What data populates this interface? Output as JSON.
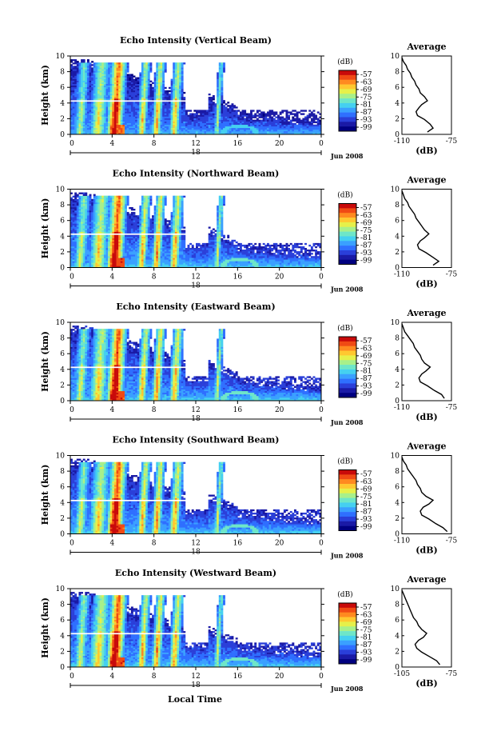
{
  "figure": {
    "common_xlabel": "Local Time"
  },
  "colormap": [
    "#000080",
    "#1a1aa6",
    "#2a3fd9",
    "#2f6fff",
    "#3aa0ff",
    "#45d0f0",
    "#6ee6c8",
    "#a8f08a",
    "#e6f04a",
    "#ffc830",
    "#ff8a20",
    "#f04a14",
    "#c80a0a"
  ],
  "chart_data": [
    {
      "type": "heatmap",
      "title": "Echo Intensity (Vertical Beam)",
      "ylabel": "Height (km)",
      "ylim": [
        0,
        10
      ],
      "yticks": [
        "0",
        "2",
        "4",
        "6",
        "8",
        "10"
      ],
      "xlim": [
        0,
        24
      ],
      "xticks": [
        "0",
        "4",
        "8",
        "12",
        "16",
        "20",
        "0"
      ],
      "date_label": "18",
      "month_label": "Jun 2008",
      "colorbar": {
        "label": "(dB)",
        "ticks": [
          "-57",
          "-63",
          "-69",
          "-75",
          "-81",
          "-87",
          "-93",
          "-99"
        ]
      },
      "average": {
        "title": "Average",
        "xlabel": "(dB)",
        "xticks": [
          "-110",
          "-75"
        ],
        "xlim": [
          -110,
          -75
        ],
        "ylim": [
          0,
          10
        ],
        "yticks": [
          "0",
          "2",
          "4",
          "6",
          "8",
          "10"
        ],
        "profile": [
          [
            -92,
            0.3
          ],
          [
            -88,
            0.8
          ],
          [
            -90,
            1.3
          ],
          [
            -94,
            1.9
          ],
          [
            -99,
            2.4
          ],
          [
            -100,
            2.9
          ],
          [
            -98,
            3.4
          ],
          [
            -96,
            3.8
          ],
          [
            -92,
            4.3
          ],
          [
            -94,
            4.8
          ],
          [
            -97,
            5.3
          ],
          [
            -98,
            5.8
          ],
          [
            -100,
            6.3
          ],
          [
            -101,
            6.8
          ],
          [
            -103,
            7.3
          ],
          [
            -104,
            7.8
          ],
          [
            -106,
            8.3
          ],
          [
            -107,
            8.8
          ],
          [
            -109,
            9.3
          ],
          [
            -110,
            9.8
          ]
        ]
      }
    },
    {
      "type": "heatmap",
      "title": "Echo Intensity (Northward Beam)",
      "ylabel": "Height (km)",
      "ylim": [
        0,
        10
      ],
      "yticks": [
        "0",
        "2",
        "4",
        "6",
        "8",
        "10"
      ],
      "xlim": [
        0,
        24
      ],
      "xticks": [
        "0",
        "4",
        "8",
        "12",
        "16",
        "20",
        "0"
      ],
      "date_label": "18",
      "month_label": "Jun 2008",
      "colorbar": {
        "label": "(dB)",
        "ticks": [
          "-57",
          "-63",
          "-69",
          "-75",
          "-81",
          "-87",
          "-93",
          "-99"
        ]
      },
      "average": {
        "title": "Average",
        "xlabel": "(dB)",
        "xticks": [
          "-110",
          "-75"
        ],
        "xlim": [
          -110,
          -75
        ],
        "ylim": [
          0,
          10
        ],
        "yticks": [
          "0",
          "2",
          "4",
          "6",
          "8",
          "10"
        ],
        "profile": [
          [
            -88,
            0.3
          ],
          [
            -84,
            0.8
          ],
          [
            -88,
            1.3
          ],
          [
            -93,
            1.9
          ],
          [
            -98,
            2.4
          ],
          [
            -99,
            2.9
          ],
          [
            -97,
            3.4
          ],
          [
            -94,
            3.8
          ],
          [
            -91,
            4.3
          ],
          [
            -94,
            4.8
          ],
          [
            -96,
            5.3
          ],
          [
            -98,
            5.8
          ],
          [
            -100,
            6.3
          ],
          [
            -101,
            6.8
          ],
          [
            -103,
            7.3
          ],
          [
            -105,
            7.8
          ],
          [
            -106,
            8.3
          ],
          [
            -108,
            8.8
          ],
          [
            -109,
            9.3
          ],
          [
            -110,
            9.8
          ]
        ]
      }
    },
    {
      "type": "heatmap",
      "title": "Echo Intensity (Eastward Beam)",
      "ylabel": "Height (km)",
      "ylim": [
        0,
        10
      ],
      "yticks": [
        "0",
        "2",
        "4",
        "6",
        "8",
        "10"
      ],
      "xlim": [
        0,
        24
      ],
      "xticks": [
        "0",
        "4",
        "8",
        "12",
        "16",
        "20",
        "0"
      ],
      "date_label": "18",
      "month_label": "Jun 2008",
      "colorbar": {
        "label": "(dB)",
        "ticks": [
          "-57",
          "-63",
          "-69",
          "-75",
          "-81",
          "-87",
          "-93",
          "-99"
        ]
      },
      "average": {
        "title": "Average",
        "xlabel": "(dB)",
        "xticks": [
          "-110",
          "-75"
        ],
        "xlim": [
          -110,
          -75
        ],
        "ylim": [
          0,
          10
        ],
        "yticks": [
          "0",
          "2",
          "4",
          "6",
          "8",
          "10"
        ],
        "profile": [
          [
            -80,
            0.3
          ],
          [
            -82,
            0.8
          ],
          [
            -87,
            1.3
          ],
          [
            -92,
            1.9
          ],
          [
            -97,
            2.4
          ],
          [
            -98,
            2.9
          ],
          [
            -96,
            3.4
          ],
          [
            -93,
            3.8
          ],
          [
            -90,
            4.3
          ],
          [
            -94,
            4.8
          ],
          [
            -96,
            5.3
          ],
          [
            -97,
            5.8
          ],
          [
            -99,
            6.3
          ],
          [
            -101,
            6.8
          ],
          [
            -102,
            7.3
          ],
          [
            -104,
            7.8
          ],
          [
            -106,
            8.3
          ],
          [
            -108,
            8.8
          ],
          [
            -109,
            9.3
          ],
          [
            -110,
            9.8
          ]
        ]
      }
    },
    {
      "type": "heatmap",
      "title": "Echo Intensity (Southward Beam)",
      "ylabel": "Height (km)",
      "ylim": [
        0,
        10
      ],
      "yticks": [
        "0",
        "2",
        "4",
        "6",
        "8",
        "10"
      ],
      "xlim": [
        0,
        24
      ],
      "xticks": [
        "0",
        "4",
        "8",
        "12",
        "16",
        "20",
        "0"
      ],
      "date_label": "18",
      "month_label": "Jun 2008",
      "colorbar": {
        "label": "(dB)",
        "ticks": [
          "-57",
          "-63",
          "-69",
          "-75",
          "-81",
          "-87",
          "-93",
          "-99"
        ]
      },
      "average": {
        "title": "Average",
        "xlabel": "(dB)",
        "xticks": [
          "-110",
          "-75"
        ],
        "xlim": [
          -110,
          -75
        ],
        "ylim": [
          0,
          10
        ],
        "yticks": [
          "0",
          "2",
          "4",
          "6",
          "8",
          "10"
        ],
        "profile": [
          [
            -78,
            0.3
          ],
          [
            -81,
            0.8
          ],
          [
            -86,
            1.3
          ],
          [
            -91,
            1.9
          ],
          [
            -96,
            2.4
          ],
          [
            -97,
            2.9
          ],
          [
            -95,
            3.4
          ],
          [
            -91,
            3.8
          ],
          [
            -88,
            4.3
          ],
          [
            -93,
            4.8
          ],
          [
            -96,
            5.3
          ],
          [
            -97,
            5.8
          ],
          [
            -99,
            6.3
          ],
          [
            -100,
            6.8
          ],
          [
            -102,
            7.3
          ],
          [
            -104,
            7.8
          ],
          [
            -106,
            8.3
          ],
          [
            -107,
            8.8
          ],
          [
            -109,
            9.3
          ],
          [
            -110,
            9.8
          ]
        ]
      }
    },
    {
      "type": "heatmap",
      "title": "Echo Intensity (Westward Beam)",
      "ylabel": "Height (km)",
      "ylim": [
        0,
        10
      ],
      "yticks": [
        "0",
        "2",
        "4",
        "6",
        "8",
        "10"
      ],
      "xlim": [
        0,
        24
      ],
      "xticks": [
        "0",
        "4",
        "8",
        "12",
        "16",
        "20",
        "0"
      ],
      "date_label": "18",
      "month_label": "Jun 2008",
      "colorbar": {
        "label": "(dB)",
        "ticks": [
          "-57",
          "-63",
          "-69",
          "-75",
          "-81",
          "-87",
          "-93",
          "-99"
        ]
      },
      "average": {
        "title": "Average",
        "xlabel": "(dB)",
        "xticks": [
          "-105",
          "-75"
        ],
        "xlim": [
          -105,
          -75
        ],
        "ylim": [
          0,
          10
        ],
        "yticks": [
          "0",
          "2",
          "4",
          "6",
          "8",
          "10"
        ],
        "profile": [
          [
            -82,
            0.3
          ],
          [
            -84,
            0.8
          ],
          [
            -88,
            1.3
          ],
          [
            -93,
            1.9
          ],
          [
            -96,
            2.4
          ],
          [
            -97,
            2.9
          ],
          [
            -95,
            3.4
          ],
          [
            -92,
            3.8
          ],
          [
            -90,
            4.3
          ],
          [
            -93,
            4.8
          ],
          [
            -95,
            5.3
          ],
          [
            -96,
            5.8
          ],
          [
            -98,
            6.3
          ],
          [
            -99,
            6.8
          ],
          [
            -100,
            7.3
          ],
          [
            -101,
            7.8
          ],
          [
            -102,
            8.3
          ],
          [
            -103,
            8.8
          ],
          [
            -104,
            9.3
          ],
          [
            -105,
            9.8
          ]
        ]
      }
    }
  ]
}
